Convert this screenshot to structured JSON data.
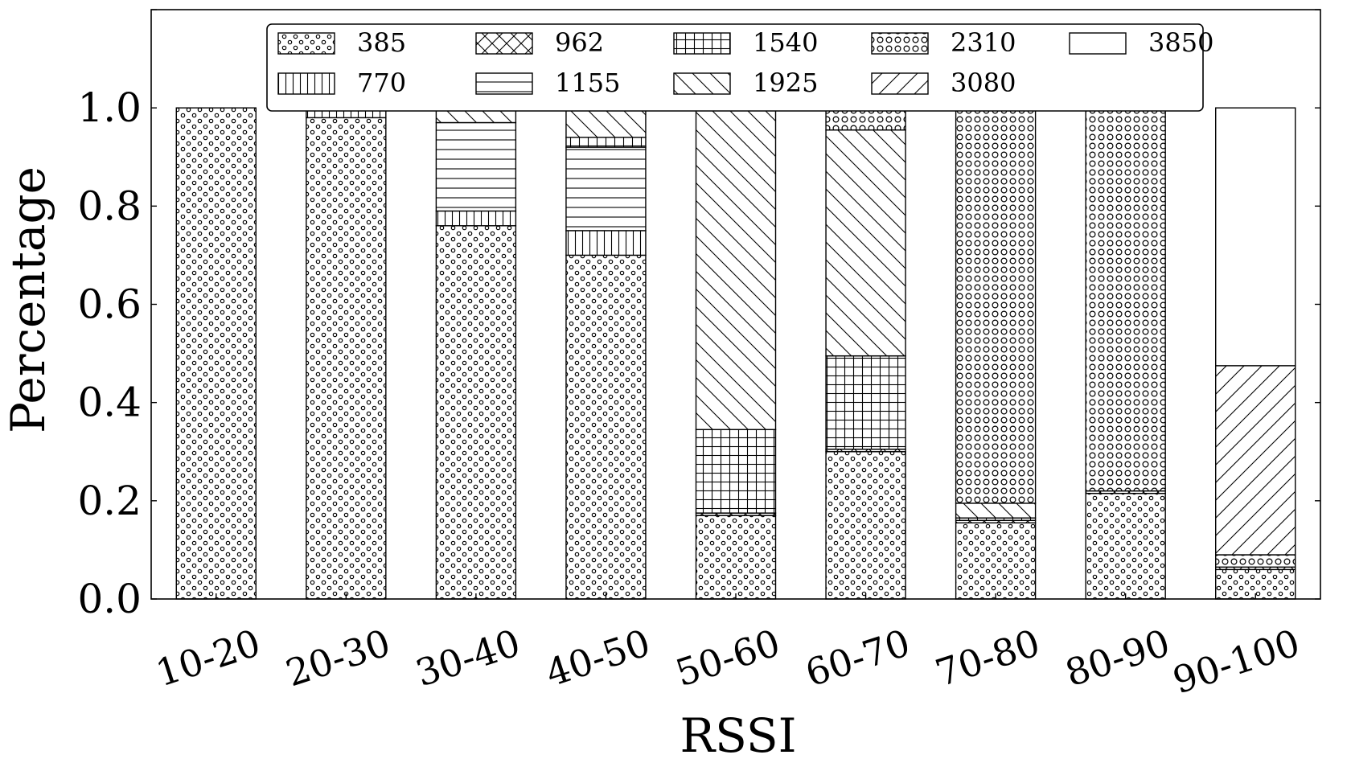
{
  "chart_data": {
    "type": "bar",
    "stacked": true,
    "xlabel": "RSSI",
    "ylabel": "Percentage",
    "ylim": [
      0,
      1.2
    ],
    "yticks": [
      "0.0",
      "0.2",
      "0.4",
      "0.6",
      "0.8",
      "1.0"
    ],
    "grid": false,
    "legend_position": "top",
    "categories": [
      "10-20",
      "20-30",
      "30-40",
      "40-50",
      "50-60",
      "60-70",
      "70-80",
      "80-90",
      "90-100"
    ],
    "series": [
      {
        "name": "385",
        "pattern": "dots",
        "values": [
          1.0,
          0.98,
          0.76,
          0.7,
          0.17,
          0.3,
          0.155,
          0.215,
          0.06
        ]
      },
      {
        "name": "770",
        "pattern": "vlines",
        "values": [
          0,
          0.02,
          0.03,
          0.05,
          0,
          0,
          0,
          0,
          0
        ]
      },
      {
        "name": "962",
        "pattern": "crosshatch",
        "values": [
          0,
          0,
          0,
          0,
          0.005,
          0.005,
          0.005,
          0.005,
          0.005
        ]
      },
      {
        "name": "1155",
        "pattern": "hlines",
        "values": [
          0,
          0,
          0.18,
          0.17,
          0,
          0,
          0,
          0,
          0
        ]
      },
      {
        "name": "1540",
        "pattern": "grid",
        "values": [
          0,
          0,
          0,
          0.02,
          0.17,
          0.19,
          0.005,
          0,
          0
        ]
      },
      {
        "name": "1925",
        "pattern": "backslash",
        "values": [
          0,
          0,
          0.03,
          0.06,
          0.655,
          0.46,
          0.03,
          0,
          0
        ]
      },
      {
        "name": "2310",
        "pattern": "circles",
        "values": [
          0,
          0,
          0,
          0,
          0,
          0.045,
          0.805,
          0.775,
          0.025
        ]
      },
      {
        "name": "3080",
        "pattern": "slash",
        "values": [
          0,
          0,
          0,
          0,
          0,
          0,
          0,
          0.005,
          0.385
        ]
      },
      {
        "name": "3850",
        "pattern": "empty",
        "values": [
          0,
          0,
          0,
          0,
          0,
          0,
          0,
          0,
          0.525
        ]
      }
    ]
  }
}
